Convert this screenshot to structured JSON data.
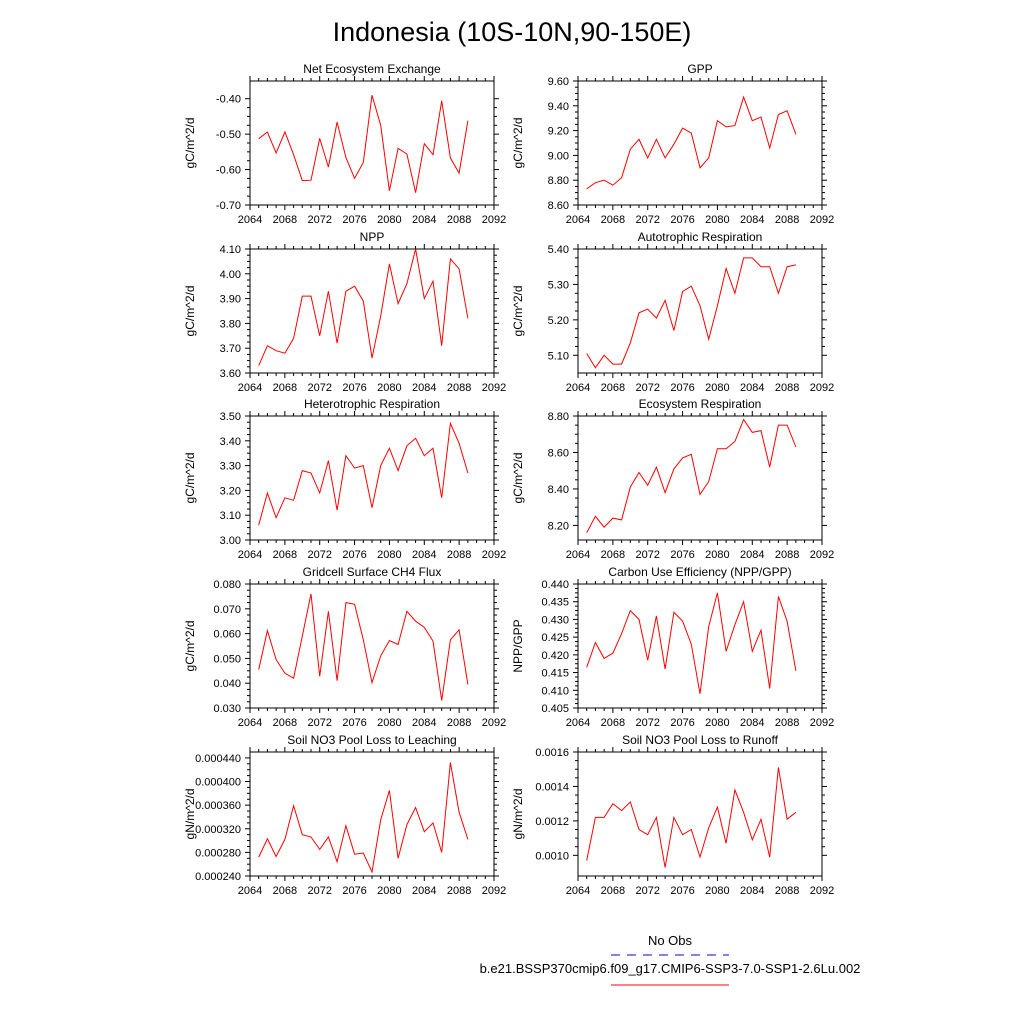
{
  "page_title": "Indonesia (10S-10N,90-150E)",
  "colors": {
    "model": "#ff0000",
    "obs": "#0000ff",
    "axis": "#000000"
  },
  "legend": {
    "obs_label": "No Obs",
    "model_label": "b.e21.BSSP370cmip6.f09_g17.CMIP6-SSP3-7.0-SSP1-2.6Lu.002"
  },
  "chart_data": [
    {
      "type": "line",
      "title": "Net Ecosystem Exchange",
      "ylabel": "gC/m^2/d",
      "xlim": [
        2064,
        2092
      ],
      "ylim": [
        -0.7,
        -0.35
      ],
      "xticks": [
        2064,
        2068,
        2072,
        2076,
        2080,
        2084,
        2088,
        2092
      ],
      "yticks": [
        -0.7,
        -0.6,
        -0.5,
        -0.4
      ],
      "ytick_labels": [
        "-0.70",
        "-0.60",
        "-0.50",
        "-0.40"
      ],
      "series": [
        {
          "x": [
            2065,
            2066,
            2067,
            2068,
            2069,
            2070,
            2071,
            2072,
            2073,
            2074,
            2075,
            2076,
            2077,
            2078,
            2079,
            2080,
            2081,
            2082,
            2083,
            2084,
            2085,
            2086,
            2087,
            2088,
            2089
          ],
          "values": [
            -0.513,
            -0.494,
            -0.553,
            -0.494,
            -0.558,
            -0.631,
            -0.63,
            -0.512,
            -0.593,
            -0.466,
            -0.566,
            -0.625,
            -0.58,
            -0.39,
            -0.475,
            -0.66,
            -0.54,
            -0.556,
            -0.665,
            -0.527,
            -0.558,
            -0.406,
            -0.567,
            -0.61,
            -0.462
          ]
        }
      ]
    },
    {
      "type": "line",
      "title": "GPP",
      "ylabel": "gC/m^2/d",
      "xlim": [
        2064,
        2092
      ],
      "ylim": [
        8.6,
        9.6
      ],
      "xticks": [
        2064,
        2068,
        2072,
        2076,
        2080,
        2084,
        2088,
        2092
      ],
      "yticks": [
        8.6,
        8.8,
        9.0,
        9.2,
        9.4,
        9.6
      ],
      "ytick_labels": [
        "8.60",
        "8.80",
        "9.00",
        "9.20",
        "9.40",
        "9.60"
      ],
      "series": [
        {
          "x": [
            2065,
            2066,
            2067,
            2068,
            2069,
            2070,
            2071,
            2072,
            2073,
            2074,
            2075,
            2076,
            2077,
            2078,
            2079,
            2080,
            2081,
            2082,
            2083,
            2084,
            2085,
            2086,
            2087,
            2088,
            2089
          ],
          "values": [
            8.73,
            8.78,
            8.8,
            8.76,
            8.82,
            9.05,
            9.13,
            8.98,
            9.13,
            8.98,
            9.09,
            9.22,
            9.18,
            8.9,
            8.98,
            9.28,
            9.23,
            9.24,
            9.47,
            9.28,
            9.31,
            9.06,
            9.33,
            9.36,
            9.17
          ]
        }
      ]
    },
    {
      "type": "line",
      "title": "NPP",
      "ylabel": "gC/m^2/d",
      "xlim": [
        2064,
        2092
      ],
      "ylim": [
        3.6,
        4.1
      ],
      "xticks": [
        2064,
        2068,
        2072,
        2076,
        2080,
        2084,
        2088,
        2092
      ],
      "yticks": [
        3.6,
        3.7,
        3.8,
        3.9,
        4.0,
        4.1
      ],
      "ytick_labels": [
        "3.60",
        "3.70",
        "3.80",
        "3.90",
        "4.00",
        "4.10"
      ],
      "series": [
        {
          "x": [
            2065,
            2066,
            2067,
            2068,
            2069,
            2070,
            2071,
            2072,
            2073,
            2074,
            2075,
            2076,
            2077,
            2078,
            2079,
            2080,
            2081,
            2082,
            2083,
            2084,
            2085,
            2086,
            2087,
            2088,
            2089
          ],
          "values": [
            3.63,
            3.71,
            3.69,
            3.68,
            3.74,
            3.91,
            3.91,
            3.75,
            3.93,
            3.72,
            3.93,
            3.95,
            3.89,
            3.66,
            3.83,
            4.04,
            3.88,
            3.96,
            4.1,
            3.9,
            3.97,
            3.71,
            4.06,
            4.02,
            3.82
          ]
        }
      ]
    },
    {
      "type": "line",
      "title": "Autotrophic Respiration",
      "ylabel": "gC/m^2/d",
      "xlim": [
        2064,
        2092
      ],
      "ylim": [
        5.05,
        5.4
      ],
      "xticks": [
        2064,
        2068,
        2072,
        2076,
        2080,
        2084,
        2088,
        2092
      ],
      "yticks": [
        5.1,
        5.2,
        5.3,
        5.4
      ],
      "ytick_labels": [
        "5.10",
        "5.20",
        "5.30",
        "5.40"
      ],
      "series": [
        {
          "x": [
            2065,
            2066,
            2067,
            2068,
            2069,
            2070,
            2071,
            2072,
            2073,
            2074,
            2075,
            2076,
            2077,
            2078,
            2079,
            2080,
            2081,
            2082,
            2083,
            2084,
            2085,
            2086,
            2087,
            2088,
            2089
          ],
          "values": [
            5.105,
            5.065,
            5.1,
            5.075,
            5.075,
            5.135,
            5.22,
            5.23,
            5.205,
            5.255,
            5.17,
            5.28,
            5.295,
            5.24,
            5.145,
            5.24,
            5.345,
            5.275,
            5.375,
            5.375,
            5.35,
            5.35,
            5.275,
            5.35,
            5.355
          ]
        }
      ]
    },
    {
      "type": "line",
      "title": "Heterotrophic Respiration",
      "ylabel": "gC/m^2/d",
      "xlim": [
        2064,
        2092
      ],
      "ylim": [
        3.0,
        3.5
      ],
      "xticks": [
        2064,
        2068,
        2072,
        2076,
        2080,
        2084,
        2088,
        2092
      ],
      "yticks": [
        3.0,
        3.1,
        3.2,
        3.3,
        3.4,
        3.5
      ],
      "ytick_labels": [
        "3.00",
        "3.10",
        "3.20",
        "3.30",
        "3.40",
        "3.50"
      ],
      "series": [
        {
          "x": [
            2065,
            2066,
            2067,
            2068,
            2069,
            2070,
            2071,
            2072,
            2073,
            2074,
            2075,
            2076,
            2077,
            2078,
            2079,
            2080,
            2081,
            2082,
            2083,
            2084,
            2085,
            2086,
            2087,
            2088,
            2089
          ],
          "values": [
            3.06,
            3.19,
            3.09,
            3.17,
            3.16,
            3.28,
            3.27,
            3.19,
            3.32,
            3.12,
            3.34,
            3.29,
            3.3,
            3.13,
            3.3,
            3.37,
            3.28,
            3.38,
            3.41,
            3.34,
            3.37,
            3.17,
            3.47,
            3.39,
            3.27
          ]
        }
      ]
    },
    {
      "type": "line",
      "title": "Ecosystem Respiration",
      "ylabel": "gC/m^2/d",
      "xlim": [
        2064,
        2092
      ],
      "ylim": [
        8.12,
        8.8
      ],
      "xticks": [
        2064,
        2068,
        2072,
        2076,
        2080,
        2084,
        2088,
        2092
      ],
      "yticks": [
        8.2,
        8.4,
        8.6,
        8.8
      ],
      "ytick_labels": [
        "8.20",
        "8.40",
        "8.60",
        "8.80"
      ],
      "series": [
        {
          "x": [
            2065,
            2066,
            2067,
            2068,
            2069,
            2070,
            2071,
            2072,
            2073,
            2074,
            2075,
            2076,
            2077,
            2078,
            2079,
            2080,
            2081,
            2082,
            2083,
            2084,
            2085,
            2086,
            2087,
            2088,
            2089
          ],
          "values": [
            8.16,
            8.25,
            8.19,
            8.24,
            8.23,
            8.41,
            8.49,
            8.42,
            8.52,
            8.38,
            8.51,
            8.57,
            8.59,
            8.37,
            8.44,
            8.62,
            8.62,
            8.66,
            8.78,
            8.71,
            8.72,
            8.52,
            8.75,
            8.75,
            8.63
          ]
        }
      ]
    },
    {
      "type": "line",
      "title": "Gridcell Surface CH4 Flux",
      "ylabel": "gC/m^2/d",
      "xlim": [
        2064,
        2092
      ],
      "ylim": [
        0.03,
        0.08
      ],
      "xticks": [
        2064,
        2068,
        2072,
        2076,
        2080,
        2084,
        2088,
        2092
      ],
      "yticks": [
        0.03,
        0.04,
        0.05,
        0.06,
        0.07,
        0.08
      ],
      "ytick_labels": [
        "0.030",
        "0.040",
        "0.050",
        "0.060",
        "0.070",
        "0.080"
      ],
      "series": [
        {
          "x": [
            2065,
            2066,
            2067,
            2068,
            2069,
            2070,
            2071,
            2072,
            2073,
            2074,
            2075,
            2076,
            2077,
            2078,
            2079,
            2080,
            2081,
            2082,
            2083,
            2084,
            2085,
            2086,
            2087,
            2088,
            2089
          ],
          "values": [
            0.0455,
            0.0612,
            0.0495,
            0.044,
            0.042,
            0.059,
            0.076,
            0.0428,
            0.069,
            0.041,
            0.0725,
            0.0718,
            0.0575,
            0.0402,
            0.051,
            0.0572,
            0.0556,
            0.069,
            0.065,
            0.0625,
            0.057,
            0.033,
            0.0575,
            0.0615,
            0.0395
          ]
        }
      ]
    },
    {
      "type": "line",
      "title": "Carbon Use Efficiency (NPP/GPP)",
      "ylabel": "NPP/GPP",
      "xlim": [
        2064,
        2092
      ],
      "ylim": [
        0.405,
        0.44
      ],
      "xticks": [
        2064,
        2068,
        2072,
        2076,
        2080,
        2084,
        2088,
        2092
      ],
      "yticks": [
        0.405,
        0.41,
        0.415,
        0.42,
        0.425,
        0.43,
        0.435,
        0.44
      ],
      "ytick_labels": [
        "0.405",
        "0.410",
        "0.415",
        "0.420",
        "0.425",
        "0.430",
        "0.435",
        "0.440"
      ],
      "series": [
        {
          "x": [
            2065,
            2066,
            2067,
            2068,
            2069,
            2070,
            2071,
            2072,
            2073,
            2074,
            2075,
            2076,
            2077,
            2078,
            2079,
            2080,
            2081,
            2082,
            2083,
            2084,
            2085,
            2086,
            2087,
            2088,
            2089
          ],
          "values": [
            0.4165,
            0.4235,
            0.419,
            0.4205,
            0.426,
            0.4325,
            0.43,
            0.4185,
            0.431,
            0.416,
            0.432,
            0.4295,
            0.423,
            0.409,
            0.428,
            0.4375,
            0.421,
            0.4285,
            0.435,
            0.421,
            0.427,
            0.4105,
            0.4365,
            0.4295,
            0.4155
          ]
        }
      ]
    },
    {
      "type": "line",
      "title": "Soil NO3 Pool Loss to Leaching",
      "ylabel": "gN/m^2/d",
      "xlim": [
        2064,
        2092
      ],
      "ylim": [
        0.00024,
        0.00045
      ],
      "xticks": [
        2064,
        2068,
        2072,
        2076,
        2080,
        2084,
        2088,
        2092
      ],
      "yticks": [
        0.00024,
        0.00028,
        0.00032,
        0.00036,
        0.0004,
        0.00044
      ],
      "ytick_labels": [
        "0.000240",
        "0.000280",
        "0.000320",
        "0.000360",
        "0.000400",
        "0.000440"
      ],
      "series": [
        {
          "x": [
            2065,
            2066,
            2067,
            2068,
            2069,
            2070,
            2071,
            2072,
            2073,
            2074,
            2075,
            2076,
            2077,
            2078,
            2079,
            2080,
            2081,
            2082,
            2083,
            2084,
            2085,
            2086,
            2087,
            2088,
            2089
          ],
          "values": [
            0.000272,
            0.000303,
            0.000273,
            0.000302,
            0.000359,
            0.00031,
            0.000306,
            0.000285,
            0.000306,
            0.000264,
            0.000325,
            0.000277,
            0.000279,
            0.000247,
            0.000335,
            0.000385,
            0.00027,
            0.000327,
            0.000356,
            0.000315,
            0.00033,
            0.00028,
            0.000432,
            0.000348,
            0.000302
          ]
        }
      ]
    },
    {
      "type": "line",
      "title": "Soil NO3 Pool Loss to Runoff",
      "ylabel": "gN/m^2/d",
      "xlim": [
        2064,
        2092
      ],
      "ylim": [
        0.00088,
        0.0016
      ],
      "xticks": [
        2064,
        2068,
        2072,
        2076,
        2080,
        2084,
        2088,
        2092
      ],
      "yticks": [
        0.001,
        0.0012,
        0.0014,
        0.0016
      ],
      "ytick_labels": [
        "0.0010",
        "0.0012",
        "0.0014",
        "0.0016"
      ],
      "series": [
        {
          "x": [
            2065,
            2066,
            2067,
            2068,
            2069,
            2070,
            2071,
            2072,
            2073,
            2074,
            2075,
            2076,
            2077,
            2078,
            2079,
            2080,
            2081,
            2082,
            2083,
            2084,
            2085,
            2086,
            2087,
            2088,
            2089
          ],
          "values": [
            0.00097,
            0.00122,
            0.00122,
            0.0013,
            0.00126,
            0.00131,
            0.00115,
            0.00112,
            0.00122,
            0.00093,
            0.00122,
            0.00112,
            0.00115,
            0.00099,
            0.00116,
            0.00128,
            0.00107,
            0.00138,
            0.00125,
            0.00109,
            0.00121,
            0.00099,
            0.00151,
            0.00121,
            0.00125
          ]
        }
      ]
    }
  ]
}
